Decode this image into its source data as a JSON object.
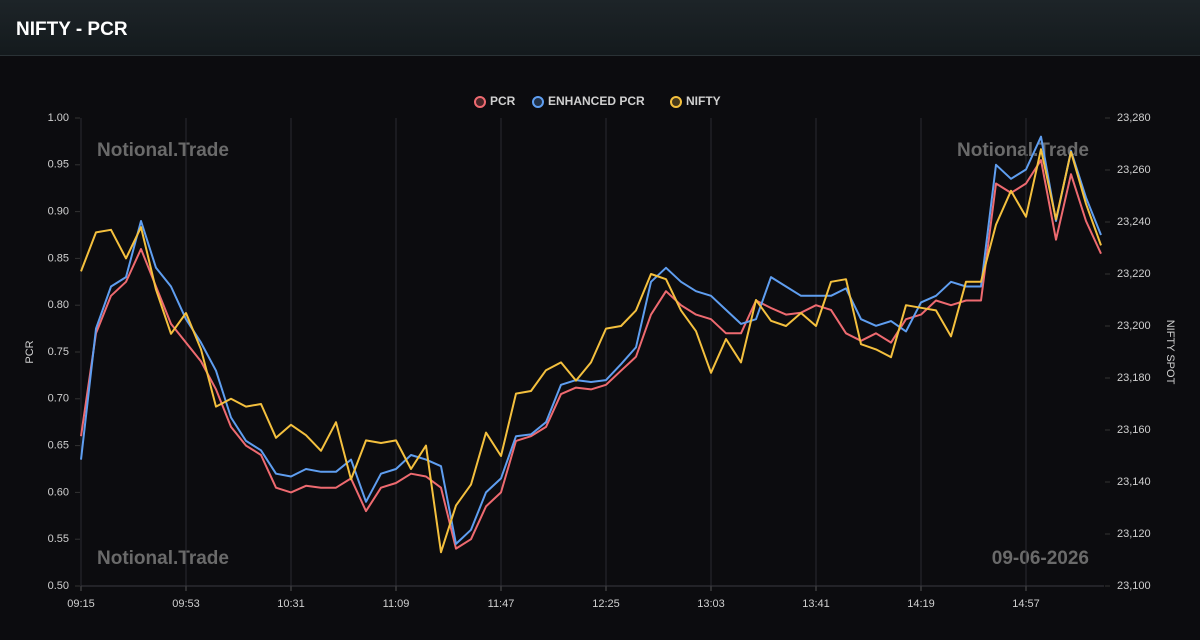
{
  "header": {
    "title": "NIFTY - PCR"
  },
  "chart_data": {
    "type": "line",
    "ylabel": "PCR",
    "y2label": "NIFTY SPOT",
    "watermarks": [
      "Notional.Trade",
      "Notional.Trade",
      "Notional.Trade"
    ],
    "date_label": "09-06-2026",
    "categories": [
      "09:15",
      null,
      null,
      null,
      null,
      null,
      null,
      "09:53",
      null,
      null,
      null,
      null,
      null,
      null,
      "10:31",
      null,
      null,
      null,
      null,
      null,
      null,
      "11:09",
      null,
      null,
      null,
      null,
      null,
      null,
      "11:47",
      null,
      null,
      null,
      null,
      null,
      null,
      "12:25",
      null,
      null,
      null,
      null,
      null,
      null,
      "13:03",
      null,
      null,
      null,
      null,
      null,
      null,
      "13:41",
      null,
      null,
      null,
      null,
      null,
      null,
      "14:19",
      null,
      null,
      null,
      null,
      null,
      null,
      "14:57",
      null,
      null,
      null,
      null,
      null
    ],
    "ylim": [
      0.5,
      1.0
    ],
    "yticks": [
      {
        "value": 0.5,
        "label": "0.50"
      },
      0.55,
      {
        "value": 0.6,
        "label": "0.60"
      },
      0.65,
      {
        "value": 0.7,
        "label": "0.70"
      },
      0.75,
      {
        "value": 0.8,
        "label": "0.80"
      },
      0.85,
      {
        "value": 0.9,
        "label": "0.90"
      },
      0.95,
      {
        "value": 1.0,
        "label": "1.00"
      }
    ],
    "y2lim": [
      23100,
      23280
    ],
    "y2ticks": [
      {
        "value": 23100,
        "label": "23,100"
      },
      {
        "value": 23120,
        "label": "23,120"
      },
      {
        "value": 23140,
        "label": "23,140"
      },
      {
        "value": 23160,
        "label": "23,160"
      },
      {
        "value": 23180,
        "label": "23,180"
      },
      {
        "value": 23200,
        "label": "23,200"
      },
      {
        "value": 23220,
        "label": "23,220"
      },
      {
        "value": 23240,
        "label": "23,240"
      },
      {
        "value": 23260,
        "label": "23,260"
      },
      {
        "value": 23280,
        "label": "23,280"
      }
    ],
    "grid": true,
    "legend": "top",
    "series": [
      {
        "name": "PCR",
        "color": "#ee6a70",
        "values": [
          0.66,
          0.77,
          0.81,
          0.825,
          0.86,
          0.82,
          0.78,
          0.76,
          0.74,
          0.71,
          0.67,
          0.65,
          0.64,
          0.605,
          0.6,
          0.607,
          0.605,
          0.605,
          0.615,
          0.58,
          0.605,
          0.61,
          0.62,
          0.617,
          0.605,
          0.54,
          0.55,
          0.585,
          0.6,
          0.655,
          0.66,
          0.67,
          0.705,
          0.712,
          0.71,
          0.715,
          0.73,
          0.745,
          0.79,
          0.815,
          0.8,
          0.79,
          0.785,
          0.77,
          0.77,
          0.805,
          0.797,
          0.79,
          0.792,
          0.8,
          0.795,
          0.77,
          0.762,
          0.77,
          0.76,
          0.785,
          0.79,
          0.805,
          0.8,
          0.805,
          0.805,
          0.93,
          0.92,
          0.93,
          0.955,
          0.87,
          0.94,
          0.89,
          0.855
        ]
      },
      {
        "name": "ENHANCED PCR",
        "color": "#5f9ef0",
        "values": [
          0.635,
          0.775,
          0.82,
          0.83,
          0.89,
          0.84,
          0.82,
          0.785,
          0.76,
          0.73,
          0.68,
          0.655,
          0.645,
          0.62,
          0.617,
          0.625,
          0.622,
          0.622,
          0.635,
          0.59,
          0.62,
          0.625,
          0.64,
          0.635,
          0.628,
          0.545,
          0.56,
          0.6,
          0.615,
          0.66,
          0.662,
          0.675,
          0.715,
          0.72,
          0.718,
          0.72,
          0.737,
          0.755,
          0.825,
          0.84,
          0.825,
          0.815,
          0.81,
          0.795,
          0.78,
          0.785,
          0.83,
          0.82,
          0.81,
          0.81,
          0.81,
          0.818,
          0.785,
          0.778,
          0.783,
          0.772,
          0.803,
          0.81,
          0.825,
          0.82,
          0.82,
          0.95,
          0.935,
          0.945,
          0.98,
          0.89,
          0.965,
          0.915,
          0.875
        ]
      },
      {
        "name": "NIFTY",
        "color": "#f4c03e",
        "axis": "y2",
        "values": [
          23221,
          23236,
          23237,
          23226,
          23238,
          23214,
          23197,
          23205,
          23191,
          23169,
          23172,
          23169,
          23170,
          23157,
          23162,
          23158,
          23152,
          23163,
          23141,
          23156,
          23155,
          23156,
          23145,
          23154,
          23113,
          23131,
          23139,
          23159,
          23150,
          23174,
          23175,
          23183,
          23186,
          23179,
          23186,
          23199,
          23200,
          23206,
          23220,
          23218,
          23206,
          23198,
          23182,
          23195,
          23186,
          23210,
          23202,
          23200,
          23205,
          23200,
          23217,
          23218,
          23193,
          23191,
          23188,
          23208,
          23207,
          23206,
          23196,
          23217,
          23217,
          23239,
          23252,
          23242,
          23268,
          23241,
          23267,
          23247,
          23231
        ]
      }
    ]
  }
}
